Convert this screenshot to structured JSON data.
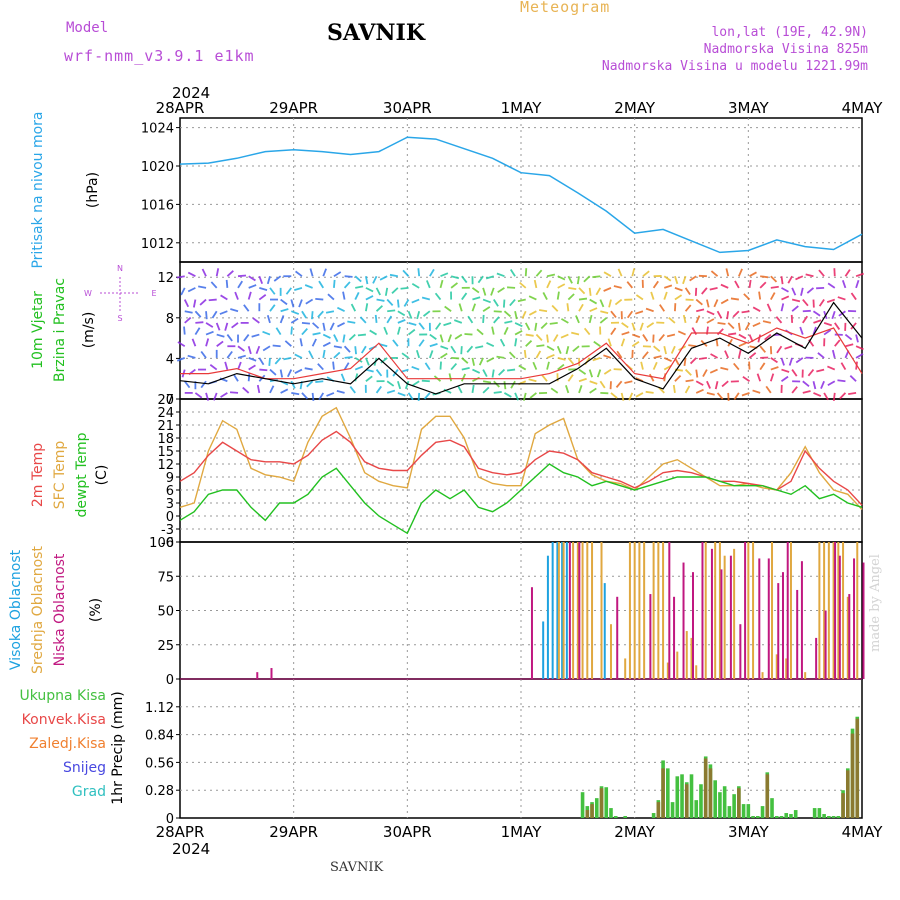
{
  "header": {
    "title": "SAVNIK",
    "subtitle": "Meteogram",
    "model_label": "Model",
    "model_name": "wrf-nmm_v3.9.1  e1km",
    "location_info": [
      "lon,lat (19E, 42.9N)",
      "Nadmorska Visina 825m",
      "Nadmorska Visina u modelu 1221.99m"
    ],
    "footer_name": "SAVNIK",
    "credit": "made by Angel"
  },
  "colors": {
    "pressure": "#2aa6e8",
    "wind_speed": "#000000",
    "gust": "#e83a3a",
    "temp2m": "#e84848",
    "sfc": "#e0a840",
    "dewpt": "#22c020",
    "cloud_high": "#1ea2e0",
    "cloud_mid": "#e0a840",
    "cloud_low": "#c01880",
    "precip_total": "#44c040",
    "precip_conv": "#e84848",
    "precip_frozen": "#f08030",
    "snow": "#4848e0",
    "graupel": "#30c0c0"
  },
  "chart_data": [
    {
      "type": "line",
      "panel": "pressure",
      "title": "",
      "ylabel": [
        "Pritisak na nivou mora",
        "(hPa)"
      ],
      "x_year": "2024",
      "x_ticks": [
        "28APR",
        "29APR",
        "30APR",
        "1MAY",
        "2MAY",
        "3MAY",
        "4MAY"
      ],
      "ylim": [
        1010,
        1025
      ],
      "yticks": [
        1012,
        1016,
        1020,
        1024
      ],
      "x_hours": [
        0,
        6,
        12,
        18,
        24,
        30,
        36,
        42,
        48,
        54,
        60,
        66,
        72,
        78,
        84,
        90,
        96,
        102,
        108,
        114,
        120,
        126,
        132,
        138,
        144
      ],
      "series": [
        {
          "name": "",
          "values": [
            1020.2,
            1020.3,
            1020.8,
            1021.5,
            1021.7,
            1021.5,
            1021.2,
            1021.5,
            1023.0,
            1022.8,
            1021.8,
            1020.8,
            1019.3,
            1019.0,
            1017.2,
            1015.3,
            1013.0,
            1013.4,
            1012.2,
            1011.0,
            1011.2,
            1012.3,
            1011.6,
            1011.3,
            1012.9
          ]
        }
      ]
    },
    {
      "type": "line",
      "panel": "wind",
      "ylabel": [
        "10m Vjetar",
        "Brzina i Pravac",
        "(m/s)"
      ],
      "ylim": [
        0,
        13.5
      ],
      "yticks": [
        0,
        4,
        8,
        12
      ],
      "compass": [
        "N",
        "W",
        "E",
        "S"
      ],
      "x_hours": [
        0,
        6,
        12,
        18,
        24,
        30,
        36,
        42,
        48,
        54,
        60,
        66,
        72,
        78,
        84,
        90,
        96,
        102,
        108,
        114,
        120,
        126,
        132,
        138,
        144
      ],
      "series": [
        {
          "name": "",
          "values": [
            1.8,
            1.5,
            2.5,
            2.0,
            1.5,
            2.0,
            1.5,
            4.0,
            1.5,
            0.5,
            1.5,
            1.5,
            1.5,
            1.5,
            3.0,
            5.0,
            2.0,
            1.0,
            5.0,
            6.0,
            4.5,
            6.5,
            5.0,
            9.5,
            6.0
          ]
        },
        {
          "name": "",
          "values": [
            2.5,
            2.5,
            3.0,
            2.0,
            2.0,
            2.5,
            3.0,
            5.5,
            2.0,
            2.0,
            2.0,
            2.0,
            2.0,
            2.5,
            3.5,
            5.5,
            2.5,
            2.0,
            6.5,
            6.5,
            5.5,
            7.0,
            6.0,
            7.0,
            2.5
          ]
        }
      ]
    },
    {
      "type": "line",
      "panel": "temperature",
      "ylabel": [
        "2m Temp",
        "SFC Temp",
        "dewpt Temp",
        "(C)"
      ],
      "ylim": [
        -6,
        27
      ],
      "yticks": [
        -6,
        -3,
        0,
        3,
        6,
        9,
        12,
        15,
        18,
        21,
        24,
        27
      ],
      "x_hours": [
        0,
        3,
        6,
        9,
        12,
        15,
        18,
        21,
        24,
        27,
        30,
        33,
        36,
        39,
        42,
        45,
        48,
        51,
        54,
        57,
        60,
        63,
        66,
        69,
        72,
        75,
        78,
        81,
        84,
        87,
        90,
        93,
        96,
        99,
        102,
        105,
        108,
        111,
        114,
        117,
        120,
        123,
        126,
        129,
        132,
        135,
        138,
        141,
        144
      ],
      "series": [
        {
          "name": "2m Temp",
          "values": [
            8,
            10,
            14,
            17,
            15,
            13,
            12.5,
            12.5,
            12,
            14,
            17.5,
            19.5,
            17,
            12.5,
            11,
            10.5,
            10.5,
            14,
            17,
            17.5,
            16,
            11,
            10,
            9.5,
            10,
            13,
            15,
            14.5,
            13,
            10,
            9,
            8,
            6.5,
            8,
            10,
            10.5,
            10,
            9,
            8,
            8,
            7.5,
            7,
            6,
            8,
            15,
            11,
            8,
            6,
            2.5
          ]
        },
        {
          "name": "SFC Temp",
          "values": [
            2,
            3,
            15,
            22,
            20,
            11,
            9.5,
            9,
            8,
            17,
            23,
            25,
            18,
            10,
            8,
            7,
            6.5,
            20,
            23,
            23,
            18,
            9,
            7.5,
            7,
            7,
            19,
            21,
            22.5,
            13,
            9.5,
            8,
            7.5,
            6,
            9,
            12,
            13,
            11,
            9,
            7,
            7,
            7.5,
            6.5,
            6,
            10,
            16,
            10,
            6,
            5,
            1.5
          ]
        },
        {
          "name": "dewpt Temp",
          "values": [
            -1,
            1,
            5,
            6,
            6,
            2,
            -1,
            3,
            3,
            5,
            9,
            11,
            7,
            3,
            0,
            -2,
            -4,
            3,
            6,
            4,
            6,
            2,
            1,
            3,
            6,
            9,
            12,
            10,
            9,
            7,
            8,
            7,
            6,
            7,
            8,
            9,
            9,
            9,
            8,
            7,
            7,
            7,
            6,
            5,
            7,
            4,
            5,
            3,
            2
          ]
        }
      ]
    },
    {
      "type": "bar",
      "panel": "cloud",
      "ylabel": [
        "Visoka Oblacnost",
        "Srednja Oblacnost",
        "Niska Oblacnost",
        "(%)"
      ],
      "ylim": [
        0,
        100
      ],
      "yticks": [
        0,
        25,
        50,
        75,
        100
      ],
      "series": [
        {
          "name": "Visoka Oblacnost",
          "x_hours": [
            77,
            78,
            79,
            80,
            81,
            82,
            90
          ],
          "values": [
            42,
            90,
            100,
            100,
            100,
            100,
            70
          ]
        },
        {
          "name": "Srednja Oblacnost",
          "x_hours": [
            80,
            81,
            83,
            84,
            85,
            86,
            87,
            89,
            91,
            94,
            95,
            96,
            97,
            98,
            100,
            101,
            102,
            103,
            105,
            107,
            108,
            109,
            111,
            113,
            114,
            115,
            117,
            120,
            121,
            123,
            125,
            126,
            128,
            129,
            132,
            135,
            136,
            137,
            138,
            139,
            140,
            141,
            143
          ],
          "values": [
            100,
            100,
            100,
            100,
            100,
            100,
            100,
            100,
            40,
            15,
            100,
            100,
            100,
            100,
            100,
            100,
            100,
            12,
            20,
            35,
            30,
            10,
            100,
            100,
            100,
            90,
            95,
            100,
            100,
            5,
            100,
            18,
            15,
            100,
            5,
            100,
            100,
            100,
            100,
            100,
            100,
            60,
            100
          ]
        },
        {
          "name": "Niska Oblacnost",
          "x_hours": [
            16,
            19,
            74,
            82,
            84,
            92,
            99,
            103,
            104,
            106,
            108,
            110,
            112,
            114,
            116,
            118,
            119,
            122,
            124,
            126,
            127,
            128,
            130,
            131,
            134,
            136,
            138,
            139,
            141,
            142,
            144
          ],
          "values": [
            5,
            8,
            67,
            100,
            100,
            60,
            62,
            100,
            60,
            85,
            78,
            100,
            95,
            80,
            90,
            40,
            100,
            88,
            88,
            70,
            78,
            100,
            65,
            86,
            30,
            50,
            100,
            90,
            62,
            88,
            85
          ]
        }
      ]
    },
    {
      "type": "bar",
      "panel": "precipitation",
      "ylabel": [
        "1hr Precip (mm)"
      ],
      "legend": [
        "Ukupna Kisa",
        "Konvek.Kisa",
        "Zaledj.Kisa",
        "Snijeg",
        "Grad"
      ],
      "ylim": [
        0,
        1.4
      ],
      "yticks": [
        0,
        0.28,
        0.56,
        0.84,
        1.12
      ],
      "series": [
        {
          "name": "Ukupna Kisa",
          "x_hours": [
            85,
            86,
            87,
            88,
            89,
            90,
            91,
            92,
            94,
            100,
            101,
            102,
            103,
            104,
            105,
            106,
            107,
            108,
            109,
            110,
            111,
            112,
            113,
            114,
            115,
            116,
            117,
            118,
            119,
            120,
            121,
            122,
            123,
            124,
            125,
            126,
            127,
            128,
            129,
            130,
            134,
            135,
            136,
            137,
            138,
            139,
            140,
            141,
            142,
            143
          ],
          "values": [
            0.26,
            0.12,
            0.16,
            0.2,
            0.32,
            0.31,
            0.1,
            0.02,
            0.02,
            0.05,
            0.18,
            0.58,
            0.5,
            0.16,
            0.42,
            0.44,
            0.36,
            0.44,
            0.18,
            0.34,
            0.62,
            0.54,
            0.38,
            0.26,
            0.32,
            0.12,
            0.24,
            0.32,
            0.14,
            0.14,
            0.02,
            0.02,
            0.12,
            0.46,
            0.2,
            0.02,
            0.02,
            0.05,
            0.04,
            0.08,
            0.1,
            0.1,
            0.04,
            0.02,
            0.02,
            0.02,
            0.28,
            0.5,
            0.9,
            1.02
          ]
        },
        {
          "name": "Konvek.Kisa",
          "x_hours": [
            86,
            87,
            89,
            101,
            102,
            107,
            111,
            112,
            118,
            124,
            140,
            141,
            142,
            143
          ],
          "values": [
            0.08,
            0.14,
            0.3,
            0.16,
            0.5,
            0.34,
            0.6,
            0.5,
            0.3,
            0.44,
            0.25,
            0.48,
            0.85,
            1.0
          ]
        }
      ]
    }
  ]
}
